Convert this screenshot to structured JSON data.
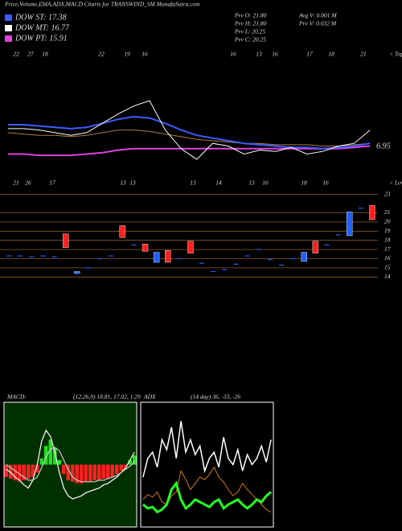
{
  "header": {
    "title": "Price,Volume,EMA,ADX,MACD Charts for TRANSWIND_SM MunafaSutra.com",
    "legend": [
      {
        "label": "DOW ST: 17.38",
        "color": "#3a5cff"
      },
      {
        "label": "DOW MT: 16.77",
        "color": "#ffffff"
      },
      {
        "label": "DOW PT: 15.91",
        "color": "#e040e0"
      }
    ],
    "stats": [
      "Prv  O: 21.80",
      "Prv  H: 21.80",
      "Prv  L: 20.25",
      "Prv  C: 20.25",
      "Avg V: 0.001 M",
      "Prv  V: 0.032 M"
    ]
  },
  "chart_data": [
    {
      "type": "line",
      "ylim": [
        0,
        100
      ],
      "annotation": "6.95",
      "top_labels": [
        "22",
        "27",
        "18",
        "22",
        "19",
        "16",
        "16",
        "13",
        "16",
        "17",
        "18",
        "21"
      ],
      "bottom_labels": [
        "21",
        "26",
        "17",
        "13",
        "13",
        "13",
        "14",
        "13",
        "16",
        "18",
        "16"
      ],
      "top_note": "< Tops",
      "bottom_note": "< Lows",
      "series": [
        {
          "color": "#e040e0",
          "width": 2,
          "values": [
            22,
            22,
            21,
            21,
            21,
            22,
            23,
            25,
            26,
            26,
            26,
            26,
            26,
            26,
            26,
            26,
            26,
            26,
            26,
            26,
            26,
            26,
            27,
            28
          ]
        },
        {
          "color": "#b07a40",
          "width": 1,
          "values": [
            38,
            37,
            36,
            36,
            35,
            36,
            38,
            40,
            40,
            39,
            37,
            35,
            33,
            32,
            31,
            30,
            30,
            29,
            29,
            29,
            28,
            28,
            29,
            30
          ]
        },
        {
          "color": "#3a5cff",
          "width": 2,
          "values": [
            44,
            44,
            43,
            42,
            41,
            42,
            45,
            48,
            50,
            49,
            45,
            40,
            36,
            34,
            32,
            30,
            29,
            28,
            27,
            27,
            26,
            27,
            28,
            30
          ]
        },
        {
          "color": "#ffffff",
          "width": 1,
          "values": [
            41,
            41,
            40,
            38,
            36,
            38,
            45,
            52,
            58,
            62,
            40,
            26,
            18,
            30,
            28,
            22,
            25,
            24,
            27,
            22,
            24,
            28,
            30,
            40
          ]
        }
      ]
    },
    {
      "type": "candlestick",
      "ylim": [
        13.5,
        23.5
      ],
      "yticks": [
        14,
        15,
        16,
        17,
        18,
        19,
        20,
        21,
        23
      ],
      "grid_color": "#8a5a2a",
      "up_color": "#2060ff",
      "down_color": "#ff2020",
      "open": [
        16.3,
        16.3,
        16.2,
        16.3,
        16.2,
        18.7,
        14.4,
        15.0,
        16.0,
        16.3,
        19.6,
        17.5,
        17.6,
        15.6,
        16.9,
        16.0,
        17.9,
        15.5,
        14.6,
        14.8,
        15.4,
        16.3,
        17.0,
        15.9,
        15.3,
        16.0,
        15.7,
        17.9,
        17.5,
        18.6,
        18.5,
        21.5,
        21.8
      ],
      "high": [
        16.3,
        16.3,
        16.2,
        16.3,
        16.2,
        18.7,
        14.6,
        15.0,
        16.0,
        16.3,
        19.6,
        17.5,
        17.6,
        16.7,
        16.9,
        16.0,
        17.9,
        15.5,
        14.6,
        14.8,
        15.4,
        16.3,
        17.0,
        15.9,
        15.3,
        16.0,
        16.7,
        17.9,
        17.5,
        18.6,
        21.1,
        21.5,
        21.8
      ],
      "low": [
        16.3,
        16.3,
        16.2,
        16.3,
        16.2,
        17.2,
        14.2,
        15.0,
        16.0,
        16.3,
        18.3,
        17.5,
        16.8,
        15.6,
        15.6,
        16.0,
        16.6,
        15.5,
        14.6,
        14.8,
        15.4,
        16.3,
        17.0,
        15.9,
        15.3,
        16.0,
        15.7,
        16.6,
        17.5,
        18.6,
        18.5,
        21.5,
        20.25
      ],
      "close": [
        16.3,
        16.3,
        16.2,
        16.3,
        16.2,
        17.2,
        14.6,
        15.0,
        16.0,
        16.3,
        18.3,
        17.5,
        16.8,
        16.7,
        15.6,
        16.0,
        16.6,
        15.5,
        14.6,
        14.8,
        15.4,
        16.3,
        17.0,
        15.9,
        15.3,
        16.0,
        16.7,
        16.6,
        17.5,
        18.6,
        21.1,
        21.5,
        20.25
      ]
    },
    {
      "type": "combo",
      "title": "MACD:",
      "subtitle": "(12,26,9) 18.81, 17.02, 1.29",
      "ylim": [
        -4,
        4
      ],
      "background": "#003000",
      "series": [
        {
          "style": "bar",
          "color": "#ff2020",
          "pos_color": "#20e020",
          "values": [
            -0.8,
            -0.9,
            -1,
            -1.1,
            -1,
            -0.9,
            -0.8,
            -0.5,
            0.4,
            1.2,
            1.6,
            1.1,
            0.3,
            -0.6,
            -1,
            -1.1,
            -1.2,
            -1.2,
            -1.1,
            -1.1,
            -1,
            -1,
            -0.9,
            -0.9,
            -0.8,
            -0.6,
            -0.4,
            -0.2,
            0.3,
            0.6
          ]
        },
        {
          "style": "line",
          "color": "#ffffff",
          "values": [
            -0.3,
            -0.5,
            -0.8,
            -1,
            -1.3,
            -1.5,
            -1,
            0,
            1.5,
            2.2,
            1.8,
            0.8,
            -0.5,
            -1.5,
            -2,
            -2.2,
            -2.1,
            -2,
            -1.8,
            -1.7,
            -1.6,
            -1.5,
            -1.3,
            -1.2,
            -1,
            -0.8,
            -0.5,
            -0.2,
            0.3,
            0.8
          ]
        },
        {
          "style": "line",
          "color": "#cccccc",
          "values": [
            0,
            -0.2,
            -0.4,
            -0.6,
            -0.8,
            -1,
            -1,
            -0.8,
            -0.2,
            0.5,
            1,
            1.1,
            0.9,
            0.3,
            -0.3,
            -0.8,
            -1,
            -1.1,
            -1.1,
            -1.1,
            -1.1,
            -1,
            -1,
            -0.9,
            -0.8,
            -0.7,
            -0.5,
            -0.3,
            -0.1,
            0.2
          ]
        }
      ]
    },
    {
      "type": "line",
      "title": "ADX",
      "subtitle": "(14 day) 36, -33, -26",
      "ylim": [
        0,
        100
      ],
      "series": [
        {
          "color": "#ffffff",
          "width": 1.5,
          "values": [
            40,
            55,
            60,
            48,
            70,
            62,
            80,
            55,
            85,
            60,
            70,
            58,
            65,
            45,
            55,
            60,
            48,
            72,
            55,
            50,
            62,
            45,
            58,
            50,
            55,
            65,
            52,
            70
          ]
        },
        {
          "color": "#d07a10",
          "width": 1,
          "values": [
            22,
            26,
            24,
            28,
            20,
            18,
            25,
            28,
            45,
            38,
            30,
            35,
            40,
            38,
            42,
            48,
            40,
            36,
            30,
            25,
            28,
            35,
            30,
            26,
            22,
            18,
            14,
            12
          ]
        },
        {
          "color": "#20ff20",
          "width": 3,
          "values": [
            18,
            15,
            16,
            12,
            14,
            18,
            30,
            35,
            22,
            15,
            18,
            22,
            20,
            18,
            16,
            20,
            22,
            15,
            18,
            20,
            22,
            18,
            15,
            18,
            22,
            20,
            25,
            28
          ]
        }
      ]
    }
  ]
}
